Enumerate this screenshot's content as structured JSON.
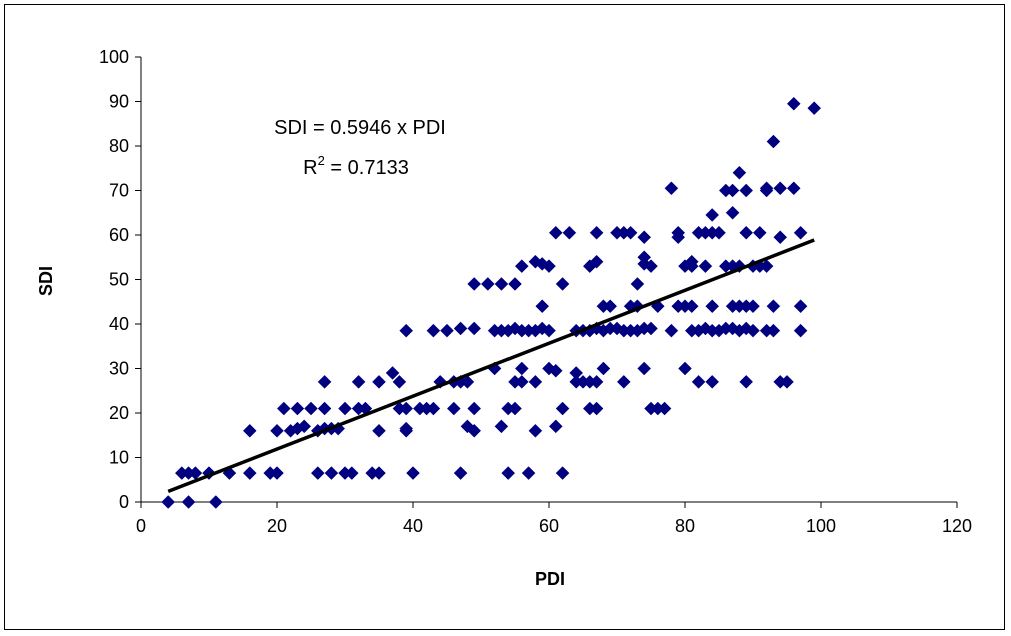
{
  "chart_data": {
    "type": "scatter",
    "xlabel": "PDI",
    "ylabel": "SDI",
    "xlim": [
      0,
      120
    ],
    "ylim": [
      0,
      100
    ],
    "x_ticks": [
      0,
      20,
      40,
      60,
      80,
      100,
      120
    ],
    "y_ticks": [
      0,
      10,
      20,
      30,
      40,
      50,
      60,
      70,
      80,
      90,
      100
    ],
    "grid": false,
    "legend": "none",
    "marker_color": "#000080",
    "trendline_color": "#000000",
    "annotation": {
      "equation": "SDI = 0.5946 x PDI",
      "r2_label": "R",
      "r2_sup": "2",
      "r2_value": " = 0.7133"
    },
    "trendline": {
      "slope": 0.5946,
      "intercept": 0,
      "x_range": [
        4,
        99
      ]
    },
    "points": [
      [
        4,
        0
      ],
      [
        6,
        6.5
      ],
      [
        7,
        6.5
      ],
      [
        7,
        0
      ],
      [
        8,
        6.5
      ],
      [
        10,
        6.5
      ],
      [
        11,
        0
      ],
      [
        13,
        6.5
      ],
      [
        16,
        16
      ],
      [
        16,
        6.5
      ],
      [
        19,
        6.5
      ],
      [
        20,
        16
      ],
      [
        20,
        6.5
      ],
      [
        21,
        21
      ],
      [
        22,
        16
      ],
      [
        23,
        16.5
      ],
      [
        23,
        21
      ],
      [
        24,
        17
      ],
      [
        25,
        21
      ],
      [
        26,
        16
      ],
      [
        26,
        6.5
      ],
      [
        27,
        27
      ],
      [
        27,
        21
      ],
      [
        27,
        16.5
      ],
      [
        28,
        16.5
      ],
      [
        28,
        6.5
      ],
      [
        29,
        16.5
      ],
      [
        30,
        21
      ],
      [
        30,
        6.5
      ],
      [
        31,
        6.5
      ],
      [
        32,
        27
      ],
      [
        32,
        21
      ],
      [
        33,
        21
      ],
      [
        34,
        6.5
      ],
      [
        35,
        27
      ],
      [
        35,
        16
      ],
      [
        35,
        6.5
      ],
      [
        37,
        29
      ],
      [
        38,
        27
      ],
      [
        38,
        21
      ],
      [
        39,
        38.5
      ],
      [
        39,
        21
      ],
      [
        39,
        16.5
      ],
      [
        39,
        16
      ],
      [
        40,
        6.5
      ],
      [
        41,
        21
      ],
      [
        42,
        21
      ],
      [
        43,
        38.5
      ],
      [
        43,
        21
      ],
      [
        44,
        27
      ],
      [
        45,
        38.5
      ],
      [
        46,
        27
      ],
      [
        46,
        21
      ],
      [
        47,
        39
      ],
      [
        47,
        27
      ],
      [
        47,
        6.5
      ],
      [
        48,
        27
      ],
      [
        48,
        17
      ],
      [
        49,
        49
      ],
      [
        49,
        39
      ],
      [
        49,
        21
      ],
      [
        49,
        16
      ],
      [
        51,
        49
      ],
      [
        52,
        30
      ],
      [
        52,
        38.5
      ],
      [
        53,
        49
      ],
      [
        53,
        38.5
      ],
      [
        53,
        17
      ],
      [
        54,
        38.5
      ],
      [
        54,
        21
      ],
      [
        54,
        6.5
      ],
      [
        55,
        49
      ],
      [
        55,
        39
      ],
      [
        55,
        27
      ],
      [
        55,
        21
      ],
      [
        56,
        53
      ],
      [
        56,
        38.5
      ],
      [
        56,
        30
      ],
      [
        56,
        27
      ],
      [
        57,
        38.5
      ],
      [
        57,
        6.5
      ],
      [
        58,
        54
      ],
      [
        58,
        38.5
      ],
      [
        58,
        27
      ],
      [
        58,
        16
      ],
      [
        59,
        44
      ],
      [
        59,
        39
      ],
      [
        59,
        53.5
      ],
      [
        60,
        53
      ],
      [
        60,
        30
      ],
      [
        60,
        38.5
      ],
      [
        61,
        60.5
      ],
      [
        61,
        29.5
      ],
      [
        61,
        17
      ],
      [
        62,
        49
      ],
      [
        62,
        21
      ],
      [
        62,
        6.5
      ],
      [
        63,
        60.5
      ],
      [
        64,
        38.5
      ],
      [
        64,
        29
      ],
      [
        64,
        27
      ],
      [
        65,
        38.5
      ],
      [
        65,
        27
      ],
      [
        66,
        53
      ],
      [
        66,
        38.5
      ],
      [
        66,
        27
      ],
      [
        66,
        21
      ],
      [
        67,
        60.5
      ],
      [
        67,
        54
      ],
      [
        67,
        39
      ],
      [
        67,
        27
      ],
      [
        67,
        21
      ],
      [
        68,
        44
      ],
      [
        68,
        38.5
      ],
      [
        68,
        30
      ],
      [
        69,
        44
      ],
      [
        69,
        39
      ],
      [
        70,
        60.5
      ],
      [
        70,
        39
      ],
      [
        71,
        60.5
      ],
      [
        71,
        38.5
      ],
      [
        71,
        27
      ],
      [
        72,
        60.5
      ],
      [
        72,
        44
      ],
      [
        72,
        38.5
      ],
      [
        73,
        49
      ],
      [
        73,
        44
      ],
      [
        73,
        38.5
      ],
      [
        74,
        59.5
      ],
      [
        74,
        55
      ],
      [
        74,
        53.5
      ],
      [
        74,
        39
      ],
      [
        74,
        30
      ],
      [
        75,
        53
      ],
      [
        75,
        39
      ],
      [
        75,
        21
      ],
      [
        76,
        44
      ],
      [
        76,
        21
      ],
      [
        77,
        21
      ],
      [
        78,
        70.5
      ],
      [
        78,
        38.5
      ],
      [
        79,
        60.5
      ],
      [
        79,
        59.5
      ],
      [
        79,
        44
      ],
      [
        80,
        53
      ],
      [
        80,
        44
      ],
      [
        80,
        30
      ],
      [
        81,
        54
      ],
      [
        81,
        53
      ],
      [
        81,
        44
      ],
      [
        81,
        38.5
      ],
      [
        82,
        60.5
      ],
      [
        82,
        38.5
      ],
      [
        82,
        27
      ],
      [
        83,
        60.5
      ],
      [
        83,
        53
      ],
      [
        83,
        39
      ],
      [
        84,
        64.5
      ],
      [
        84,
        60.5
      ],
      [
        84,
        44
      ],
      [
        84,
        38.5
      ],
      [
        84,
        27
      ],
      [
        85,
        60.5
      ],
      [
        85,
        38.5
      ],
      [
        86,
        70
      ],
      [
        86,
        53
      ],
      [
        86,
        39
      ],
      [
        87,
        70
      ],
      [
        87,
        65
      ],
      [
        87,
        44
      ],
      [
        87,
        39
      ],
      [
        87,
        53
      ],
      [
        88,
        74
      ],
      [
        88,
        53
      ],
      [
        88,
        44
      ],
      [
        88,
        38.5
      ],
      [
        89,
        70
      ],
      [
        89,
        60.5
      ],
      [
        89,
        44
      ],
      [
        89,
        39
      ],
      [
        89,
        27
      ],
      [
        90,
        53
      ],
      [
        90,
        44
      ],
      [
        90,
        38.5
      ],
      [
        91,
        53
      ],
      [
        91,
        60.5
      ],
      [
        92,
        70.5
      ],
      [
        92,
        70
      ],
      [
        92,
        53
      ],
      [
        92,
        38.5
      ],
      [
        93,
        81
      ],
      [
        93,
        38.5
      ],
      [
        93,
        44
      ],
      [
        94,
        70.5
      ],
      [
        94,
        59.5
      ],
      [
        94,
        27
      ],
      [
        95,
        27
      ],
      [
        96,
        89.5
      ],
      [
        96,
        70.5
      ],
      [
        97,
        60.5
      ],
      [
        97,
        44
      ],
      [
        97,
        38.5
      ],
      [
        99,
        88.5
      ]
    ]
  }
}
